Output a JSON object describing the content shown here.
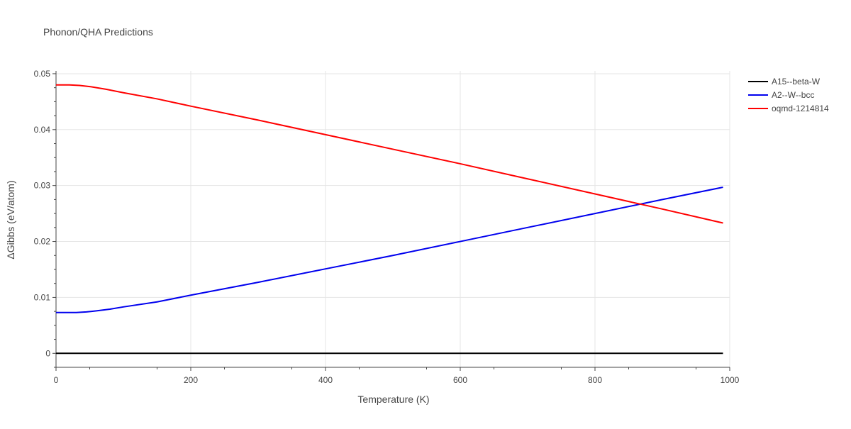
{
  "chart_data": {
    "type": "line",
    "title": "Phonon/QHA Predictions",
    "xlabel": "Temperature (K)",
    "ylabel": "ΔGibbs (eV/atom)",
    "xlim": [
      0,
      1000
    ],
    "ylim": [
      -0.0025,
      0.0505
    ],
    "xticks": [
      0,
      200,
      400,
      600,
      800,
      1000
    ],
    "xtick_labels": [
      "0",
      "200",
      "400",
      "600",
      "800",
      "1000"
    ],
    "yticks": [
      0,
      0.01,
      0.02,
      0.03,
      0.04,
      0.05
    ],
    "ytick_labels": [
      "0",
      "0.01",
      "0.02",
      "0.03",
      "0.04",
      "0.05"
    ],
    "grid": true,
    "legend_position": "right",
    "series": [
      {
        "name": "A15--beta-W",
        "color": "#000000",
        "x": [
          0,
          990
        ],
        "y": [
          0,
          0
        ]
      },
      {
        "name": "A2--W--bcc",
        "color": "#0000ee",
        "x": [
          0,
          20,
          30,
          45,
          60,
          80,
          100,
          150,
          200,
          300,
          400,
          500,
          600,
          700,
          800,
          900,
          990
        ],
        "y": [
          0.0073,
          0.0073,
          0.0073,
          0.0074,
          0.0076,
          0.0079,
          0.0083,
          0.0092,
          0.0104,
          0.0127,
          0.0151,
          0.0175,
          0.02,
          0.0225,
          0.025,
          0.0275,
          0.0297
        ]
      },
      {
        "name": "oqmd-1214814",
        "color": "#ff0000",
        "x": [
          0,
          20,
          35,
          50,
          75,
          100,
          150,
          200,
          300,
          400,
          500,
          600,
          700,
          800,
          900,
          990
        ],
        "y": [
          0.048,
          0.048,
          0.0479,
          0.0477,
          0.0472,
          0.0466,
          0.0455,
          0.0442,
          0.0417,
          0.0391,
          0.0365,
          0.0339,
          0.0312,
          0.0285,
          0.0258,
          0.0233
        ]
      }
    ]
  }
}
